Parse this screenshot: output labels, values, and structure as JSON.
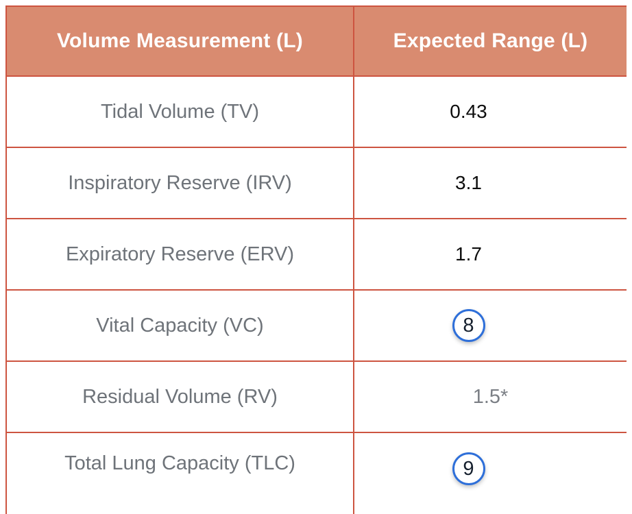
{
  "table": {
    "name": "lung-volume-expected-range-table",
    "columns": [
      {
        "label": "Volume Measurement (L)"
      },
      {
        "label": "Expected Range (L)"
      }
    ],
    "rows": [
      {
        "label": "Tidal Volume (TV)",
        "value": "0.43",
        "value_type": "answer-text"
      },
      {
        "label": "Inspiratory Reserve (IRV)",
        "value": "3.1",
        "value_type": "answer-text"
      },
      {
        "label": "Expiratory Reserve (ERV)",
        "value": "1.7",
        "value_type": "answer-text"
      },
      {
        "label": "Vital Capacity (VC)",
        "value": "8",
        "value_type": "answer-bubble"
      },
      {
        "label": "Residual Volume (RV)",
        "value": "1.5*",
        "value_type": "static-text"
      },
      {
        "label": "Total Lung Capacity (TLC)",
        "value": "9",
        "value_type": "answer-bubble"
      }
    ],
    "colors": {
      "header_bg": "#d98b70",
      "header_text": "#ffffff",
      "grid_border": "#cd5440",
      "label_text": "#6e7379",
      "static_value_text": "#7b7f85",
      "answer_text": "#0d0d0d",
      "bubble_border": "#2e6fd9",
      "bubble_text": "#16202e"
    }
  }
}
